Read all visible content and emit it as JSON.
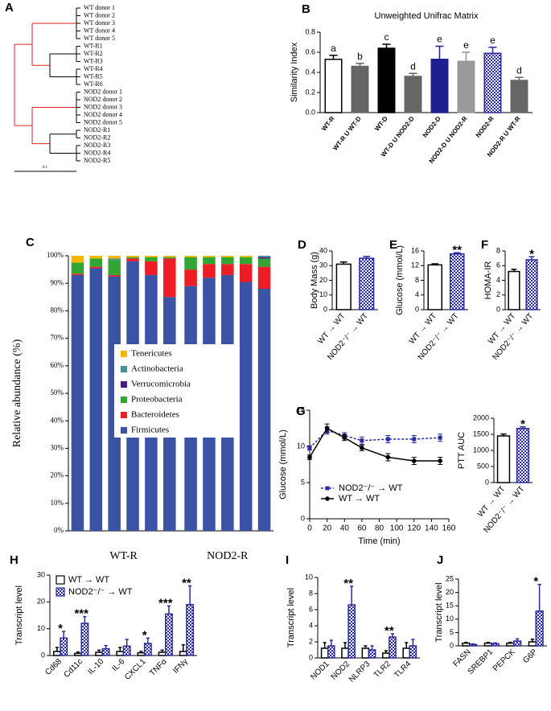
{
  "chart_data": [
    {
      "type": "dendrogram",
      "panel": "A",
      "labels": [
        "WT donor 1",
        "WT donor 2",
        "WT donor 3",
        "WT donor 4",
        "WT donor 5",
        "WT-R1",
        "WT-R2",
        "WT-R3",
        "WT-R4",
        "WT-R5",
        "WT-R6",
        "NOD2 donor 1",
        "NOD2 donor 2",
        "NOD2 donor 3",
        "NOD2 donor 4",
        "NOD2 donor 5",
        "NOD2-R1",
        "NOD2-R2",
        "NOD2-R3",
        "NOD2-R4",
        "NOD2-R5"
      ],
      "scale_label": "0.1"
    },
    {
      "type": "bar",
      "panel": "B",
      "title": "Unweighted Unifrac Matrix",
      "y_label": "Similarity Index",
      "categories": [
        "WT-R",
        "WT-R U WT-D",
        "WT-D",
        "WT-D U NOD2-D",
        "NOD2-D",
        "NOD2-D U NOD2-R",
        "NOD2-R",
        "NOD2-R U WT-R"
      ],
      "values": [
        0.53,
        0.46,
        0.64,
        0.36,
        0.53,
        0.51,
        0.59,
        0.32
      ],
      "errors": [
        0.04,
        0.03,
        0.04,
        0.03,
        0.13,
        0.09,
        0.06,
        0.03
      ],
      "annotations": [
        "a",
        "b",
        "c",
        "d",
        "e",
        "e",
        "e",
        "d"
      ],
      "colors": [
        "#ffffff",
        "#666666",
        "#000000",
        "#666666",
        "#1f1f8f",
        "#999999",
        "#2b2ba0",
        "#666666"
      ],
      "hatched": [
        false,
        false,
        false,
        false,
        false,
        false,
        true,
        false
      ],
      "ylim": [
        0,
        0.8
      ],
      "yticks": [
        {
          "value": 0,
          "label": "0.0"
        },
        0.2,
        0.4,
        0.6,
        0.8
      ]
    },
    {
      "type": "stacked_bar",
      "panel": "C",
      "y_label": "Relative abundance  (%)",
      "groups": [
        "WT-R",
        "NOD2-R"
      ],
      "series": [
        {
          "name": "Firmicutes",
          "color": "#3b53a4",
          "values": [
            [
              93,
              95.5,
              92.5,
              98,
              93,
              85
            ],
            [
              89,
              92,
              93,
              90.5,
              88
            ]
          ]
        },
        {
          "name": "Bacteroidetes",
          "color": "#ee1c24",
          "values": [
            [
              0.5,
              0.5,
              0.5,
              1,
              5,
              14
            ],
            [
              6,
              5,
              4,
              6.5,
              8
            ]
          ]
        },
        {
          "name": "Proteobacteria",
          "color": "#31a632",
          "values": [
            [
              4,
              3,
              5.5,
              0.5,
              1.5,
              0.5
            ],
            [
              4.5,
              2.5,
              2.5,
              2.5,
              3
            ]
          ]
        },
        {
          "name": "Verrucomicrobia",
          "color": "#4b1a7e",
          "values": [
            [
              0,
              0,
              0,
              0,
              0,
              0
            ],
            [
              0,
              0,
              0,
              0,
              0.5
            ]
          ]
        },
        {
          "name": "Actinobacteria",
          "color": "#4a8a9a",
          "values": [
            [
              0,
              0,
              0.5,
              0,
              0,
              0
            ],
            [
              0,
              0,
              0,
              0,
              0.5
            ]
          ]
        },
        {
          "name": "Tenericutes",
          "color": "#f5b800",
          "values": [
            [
              2.5,
              1,
              1,
              0.5,
              0.5,
              0.5
            ],
            [
              0.5,
              0.5,
              0.5,
              0.5,
              0
            ]
          ]
        }
      ],
      "ylim": [
        0,
        100
      ],
      "yticks": [
        {
          "value": 0,
          "label": "0%"
        },
        {
          "value": 10,
          "label": "10%"
        },
        {
          "value": 20,
          "label": "20%"
        },
        {
          "value": 30,
          "label": "30%"
        },
        {
          "value": 40,
          "label": "40%"
        },
        {
          "value": 50,
          "label": "50%"
        },
        {
          "value": 60,
          "label": "60%"
        },
        {
          "value": 70,
          "label": "70%"
        },
        {
          "value": 80,
          "label": "80%"
        },
        {
          "value": 90,
          "label": "90%"
        },
        {
          "value": 100,
          "label": "100%"
        }
      ]
    },
    {
      "type": "bar",
      "panel": "D",
      "y_label": "Body Mass (g)",
      "categories": [
        "WT → WT",
        "NOD2⁻/⁻ → WT"
      ],
      "values": [
        31,
        35
      ],
      "errors": [
        1.5,
        1.2
      ],
      "colors": [
        "#ffffff",
        "#2b2ba0"
      ],
      "hatched": [
        false,
        true
      ],
      "ylim": [
        0,
        40
      ],
      "yticks": [
        0,
        10,
        20,
        30,
        40
      ]
    },
    {
      "type": "bar",
      "panel": "E",
      "y_label": "Glucose (mmol/L)",
      "categories": [
        "WT → WT",
        "NOD2⁻/⁻ → WT"
      ],
      "values": [
        12.2,
        15.2
      ],
      "errors": [
        0.3,
        0.3
      ],
      "annotations": [
        null,
        "**"
      ],
      "colors": [
        "#ffffff",
        "#2b2ba0"
      ],
      "hatched": [
        false,
        true
      ],
      "ylim": [
        0,
        16
      ],
      "yticks": [
        0,
        4,
        8,
        12,
        16
      ]
    },
    {
      "type": "bar",
      "panel": "F",
      "y_label": "HOMA-IR",
      "categories": [
        "WT → WT",
        "NOD2⁻/⁻ → WT"
      ],
      "values": [
        5.2,
        6.8
      ],
      "errors": [
        0.3,
        0.4
      ],
      "annotations": [
        null,
        "*"
      ],
      "colors": [
        "#ffffff",
        "#2b2ba0"
      ],
      "hatched": [
        false,
        true
      ],
      "ylim": [
        0,
        8
      ],
      "yticks": [
        0,
        2,
        4,
        6,
        8
      ]
    },
    {
      "type": "line",
      "panel": "G",
      "y_label": "Glucose (mmol/L)",
      "x_label": "Time (min)",
      "x": [
        0,
        20,
        40,
        60,
        90,
        120,
        150
      ],
      "series": [
        {
          "name": "NOD2⁻/⁻ → WT",
          "color": "#2b2ba0",
          "dashed": true,
          "marker": "square",
          "values": [
            9.8,
            12.2,
            11.5,
            10.8,
            11,
            11,
            11.2
          ],
          "errors": [
            0.3,
            0.5,
            0.4,
            0.5,
            0.5,
            0.5,
            0.5
          ]
        },
        {
          "name": "WT → WT",
          "color": "#000000",
          "dashed": false,
          "marker": "circle",
          "values": [
            8.5,
            12.5,
            11.2,
            9.8,
            8.5,
            8,
            8
          ],
          "errors": [
            0.3,
            0.6,
            0.4,
            0.4,
            0.5,
            0.5,
            0.5
          ]
        }
      ],
      "xlim": [
        0,
        160
      ],
      "xticks": [
        0,
        20,
        40,
        60,
        80,
        100,
        120,
        140,
        160
      ],
      "ylim": [
        0,
        15
      ],
      "yticks": [
        0,
        5,
        10,
        15
      ]
    },
    {
      "type": "bar",
      "y_label": "PTT AUC",
      "categories": [
        "WT → WT",
        "NOD2⁻/⁻ → WT"
      ],
      "values": [
        1450,
        1680
      ],
      "errors": [
        60,
        50
      ],
      "annotations": [
        null,
        "*"
      ],
      "colors": [
        "#ffffff",
        "#2b2ba0"
      ],
      "hatched": [
        false,
        true
      ],
      "ylim": [
        0,
        2000
      ],
      "yticks": [
        0,
        500,
        1000,
        1500,
        2000
      ]
    },
    {
      "type": "bar",
      "panel": "H",
      "y_label": "Transcript level",
      "categories": [
        "Cd68",
        "Cd11c",
        "IL-10",
        "IL-6",
        "CXCL1",
        "TNFα",
        "IFNγ"
      ],
      "series": [
        {
          "name": "WT → WT",
          "color": "#ffffff",
          "hatched": false,
          "values": [
            1.5,
            0.8,
            1.2,
            1.5,
            1,
            1.2,
            1.5
          ],
          "errors": [
            1.5,
            0.5,
            0.8,
            1.5,
            0.5,
            0.8,
            2.5
          ]
        },
        {
          "name": "NOD2⁻/⁻ → WT",
          "color": "#2b2ba0",
          "hatched": true,
          "values": [
            6.5,
            12,
            2.5,
            3.5,
            4.5,
            15.5,
            19
          ],
          "errors": [
            2.5,
            2.5,
            1.2,
            2.5,
            2,
            3,
            7
          ]
        }
      ],
      "annotations": [
        "*",
        "***",
        null,
        null,
        "*",
        "***",
        "**"
      ],
      "ylim": [
        0,
        30
      ],
      "yticks": [
        0,
        10,
        20,
        30
      ]
    },
    {
      "type": "bar",
      "panel": "I",
      "y_label": "Transcript level",
      "categories": [
        "NOD1",
        "NOD2",
        "NLRP3",
        "TLR2",
        "TLR4"
      ],
      "series": [
        {
          "color": "#ffffff",
          "hatched": false,
          "values": [
            1.2,
            1.2,
            1.2,
            0.6,
            1.2
          ],
          "errors": [
            0.7,
            0.7,
            0.3,
            0.3,
            0.7
          ]
        },
        {
          "color": "#2b2ba0",
          "hatched": true,
          "values": [
            1.5,
            6.6,
            1,
            2.6,
            1.5
          ],
          "errors": [
            0.7,
            2.3,
            0.5,
            0.4,
            0.8
          ]
        }
      ],
      "annotations": [
        null,
        "**",
        null,
        "**",
        null
      ],
      "ylim": [
        0,
        10
      ],
      "yticks": [
        0,
        2,
        4,
        6,
        8,
        10
      ]
    },
    {
      "type": "bar",
      "panel": "J",
      "y_label": "Transcript level",
      "categories": [
        "FASN",
        "SREBP1",
        "PEPCK",
        "G6P"
      ],
      "series": [
        {
          "color": "#ffffff",
          "hatched": false,
          "values": [
            1,
            1,
            1,
            1.5
          ],
          "errors": [
            0.3,
            0.3,
            0.3,
            1
          ]
        },
        {
          "color": "#2b2ba0",
          "hatched": true,
          "values": [
            0.5,
            0.8,
            1.8,
            13
          ],
          "errors": [
            0.2,
            0.3,
            0.8,
            10
          ]
        }
      ],
      "annotations": [
        null,
        null,
        null,
        "*"
      ],
      "ylim": [
        0,
        25
      ],
      "yticks": [
        0,
        5,
        10,
        15,
        20,
        25
      ]
    }
  ]
}
